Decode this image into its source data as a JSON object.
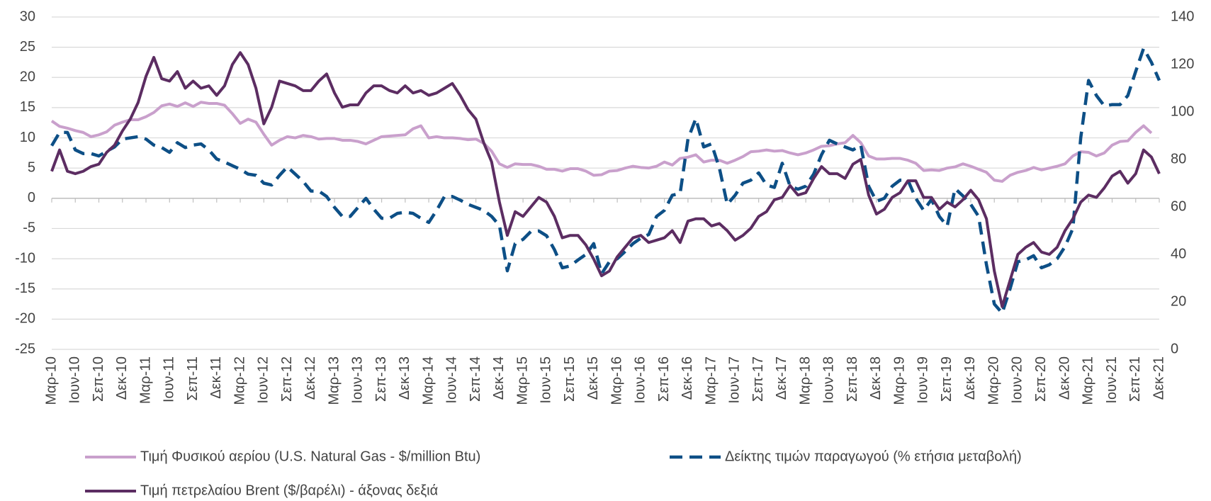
{
  "chart_data": {
    "type": "line",
    "categories": [
      "Μαρ-10",
      null,
      null,
      "Ιουν-10",
      null,
      null,
      "Σεπ-10",
      null,
      null,
      "Δεκ-10",
      null,
      null,
      "Μαρ-11",
      null,
      null,
      "Ιουν-11",
      null,
      null,
      "Σεπ-11",
      null,
      null,
      "Δεκ-11",
      null,
      null,
      "Μαρ-12",
      null,
      null,
      "Ιουν-12",
      null,
      null,
      "Σεπ-12",
      null,
      null,
      "Δεκ-12",
      null,
      null,
      "Μαρ-13",
      null,
      null,
      "Ιουν-13",
      null,
      null,
      "Σεπ-13",
      null,
      null,
      "Δεκ-13",
      null,
      null,
      "Μαρ-14",
      null,
      null,
      "Ιουν-14",
      null,
      null,
      "Σεπ-14",
      null,
      null,
      "Δεκ-14",
      null,
      null,
      "Μαρ-15",
      null,
      null,
      "Ιουν-15",
      null,
      null,
      "Σεπ-15",
      null,
      null,
      "Δεκ-15",
      null,
      null,
      "Μαρ-16",
      null,
      null,
      "Ιουν-16",
      null,
      null,
      "Σεπ-16",
      null,
      null,
      "Δεκ-16",
      null,
      null,
      "Μαρ-17",
      null,
      null,
      "Ιουν-17",
      null,
      null,
      "Σεπ-17",
      null,
      null,
      "Δεκ-17",
      null,
      null,
      "Μαρ-18",
      null,
      null,
      "Ιουν-18",
      null,
      null,
      "Σεπ-18",
      null,
      null,
      "Δεκ-18",
      null,
      null,
      "Μαρ-19",
      null,
      null,
      "Ιουν-19",
      null,
      null,
      "Σεπ-19",
      null,
      null,
      "Δεκ-19",
      null,
      null,
      "Μαρ-20",
      null,
      null,
      "Ιουν-20",
      null,
      null,
      "Σεπ-20",
      null,
      null,
      "Δεκ-20",
      null,
      null,
      "Μαρ-21",
      null,
      null,
      "Ιουν-21",
      null,
      null,
      "Σεπ-21",
      null,
      null,
      "Δεκ-21"
    ],
    "series": [
      {
        "name": "Τιμή Φυσικού αερίου (U.S. Natural Gas - $/million Btu)",
        "color": "#c9a0cc",
        "dash": "solid",
        "values": [
          12.8,
          11.9,
          11.6,
          11.2,
          10.9,
          10.2,
          10.5,
          11.0,
          12.1,
          12.6,
          13.0,
          13.0,
          13.5,
          14.2,
          15.3,
          15.6,
          15.2,
          15.8,
          15.2,
          15.9,
          15.7,
          15.7,
          15.4,
          14.0,
          12.4,
          13.1,
          12.6,
          10.6,
          8.8,
          9.6,
          10.2,
          10.0,
          10.4,
          10.2,
          9.8,
          9.9,
          9.9,
          9.6,
          9.6,
          9.4,
          9.0,
          9.6,
          10.2,
          10.3,
          10.4,
          10.5,
          11.5,
          12.0,
          10.0,
          10.2,
          10.0,
          10.0,
          9.9,
          9.7,
          9.8,
          9.1,
          7.8,
          5.7,
          5.1,
          5.7,
          5.6,
          5.6,
          5.3,
          4.8,
          4.8,
          4.5,
          4.9,
          4.9,
          4.5,
          3.8,
          3.9,
          4.5,
          4.6,
          5.0,
          5.3,
          5.1,
          5.0,
          5.3,
          6.0,
          5.5,
          6.6,
          6.8,
          7.2,
          6.0,
          6.3,
          6.3,
          5.8,
          6.3,
          6.9,
          7.7,
          7.8,
          8.0,
          7.8,
          7.9,
          7.5,
          7.2,
          7.5,
          8.0,
          8.6,
          8.7,
          9.0,
          9.2,
          10.4,
          9.2,
          7.0,
          6.5,
          6.5,
          6.6,
          6.6,
          6.3,
          5.8,
          4.6,
          4.7,
          4.6,
          5.0,
          5.2,
          5.7,
          5.3,
          4.8,
          4.3,
          3.0,
          2.8,
          3.8,
          4.3,
          4.6,
          5.1,
          4.7,
          5.0,
          5.3,
          5.7,
          7.0,
          7.7,
          7.6,
          7.0,
          7.5,
          8.8,
          9.4,
          9.5,
          10.9,
          12.0,
          10.8,
          null
        ]
      },
      {
        "name": "Δείκτης τιμών παραγωγού (% ετήσια μεταβολή)",
        "color": "#0d4f86",
        "dash": "dashed",
        "values": [
          8.7,
          10.9,
          10.9,
          8.0,
          7.4,
          7.4,
          7.0,
          7.8,
          8.5,
          9.8,
          10.0,
          10.2,
          9.8,
          8.8,
          8.4,
          7.6,
          9.2,
          8.4,
          8.8,
          9.0,
          8.0,
          6.5,
          6.0,
          5.4,
          4.8,
          4.0,
          3.8,
          2.5,
          2.2,
          3.8,
          5.2,
          4.0,
          2.8,
          1.2,
          1.2,
          0.3,
          -1.5,
          -3.0,
          -3.0,
          -1.5,
          0.0,
          -1.8,
          -3.3,
          -3.3,
          -2.5,
          -2.3,
          -2.5,
          -3.3,
          -4.0,
          -2.0,
          0.3,
          0.3,
          -0.3,
          -1.0,
          -1.5,
          -2.0,
          -3.0,
          -4.5,
          -12.0,
          -7.5,
          -6.8,
          -5.5,
          -5.4,
          -6.2,
          -8.5,
          -11.5,
          -11.2,
          -10.2,
          -9.3,
          -7.5,
          -12.5,
          -10.5,
          -10.0,
          -8.8,
          -7.5,
          -6.6,
          -6.0,
          -3.0,
          -2.0,
          0.5,
          0.8,
          9.8,
          13.2,
          8.5,
          9.0,
          5.0,
          -1.0,
          0.5,
          2.5,
          3.0,
          4.2,
          2.2,
          1.8,
          5.8,
          2.0,
          1.5,
          2.0,
          4.0,
          7.2,
          9.6,
          9.0,
          8.5,
          8.0,
          8.8,
          2.0,
          -0.5,
          0.0,
          2.0,
          3.0,
          3.0,
          0.0,
          -2.0,
          -0.2,
          -3.0,
          -4.6,
          1.6,
          0.4,
          -1.0,
          -3.0,
          -11.0,
          -17.5,
          -19.0,
          -15.0,
          -10.5,
          -10.2,
          -9.5,
          -11.5,
          -11.0,
          -10.0,
          -8.0,
          -5.0,
          10.0,
          19.5,
          17.0,
          15.3,
          15.5,
          15.5,
          17.0,
          21.0,
          24.8,
          22.5,
          19.5
        ]
      },
      {
        "name": "Τιμή πετρελαίου Brent ($/βαρέλι) - άξονας δεξιά",
        "color": "#5c2d62",
        "dash": "solid",
        "axis": "y2",
        "values": [
          75,
          84,
          75,
          74,
          75,
          77,
          78,
          83,
          86,
          92,
          97,
          104,
          115,
          123,
          114,
          113,
          117,
          110,
          113,
          110,
          111,
          107,
          111,
          120,
          125,
          120,
          110,
          95,
          102,
          113,
          112,
          111,
          109,
          109,
          113,
          116,
          108,
          102,
          103,
          103,
          108,
          111,
          111,
          109,
          108,
          111,
          108,
          109,
          107,
          108,
          110,
          112,
          107,
          101,
          97,
          87,
          79,
          62,
          48,
          58,
          56,
          60,
          64,
          62,
          56,
          47,
          48,
          48,
          44,
          38,
          31,
          33,
          39,
          43,
          47,
          48,
          45,
          46,
          47,
          50,
          45,
          54,
          55,
          55,
          52,
          53,
          50,
          46,
          48,
          51,
          56,
          58,
          63,
          64,
          69,
          65,
          66,
          72,
          77,
          74,
          74,
          72,
          78,
          80,
          65,
          57,
          59,
          64,
          66,
          71,
          71,
          64,
          64,
          59,
          62,
          60,
          63,
          67,
          63,
          55,
          33,
          18,
          29,
          40,
          43,
          45,
          41,
          40,
          43,
          50,
          55,
          62,
          65,
          64,
          68,
          73,
          75,
          70,
          74,
          84,
          81,
          74
        ]
      }
    ],
    "ylim": [
      -25,
      30
    ],
    "yticks": [
      -25,
      -20,
      -15,
      -10,
      -5,
      0,
      5,
      10,
      15,
      20,
      25,
      30
    ],
    "y2lim": [
      0,
      140
    ],
    "y2ticks": [
      0,
      20,
      40,
      60,
      80,
      100,
      120,
      140
    ],
    "grid": true
  }
}
